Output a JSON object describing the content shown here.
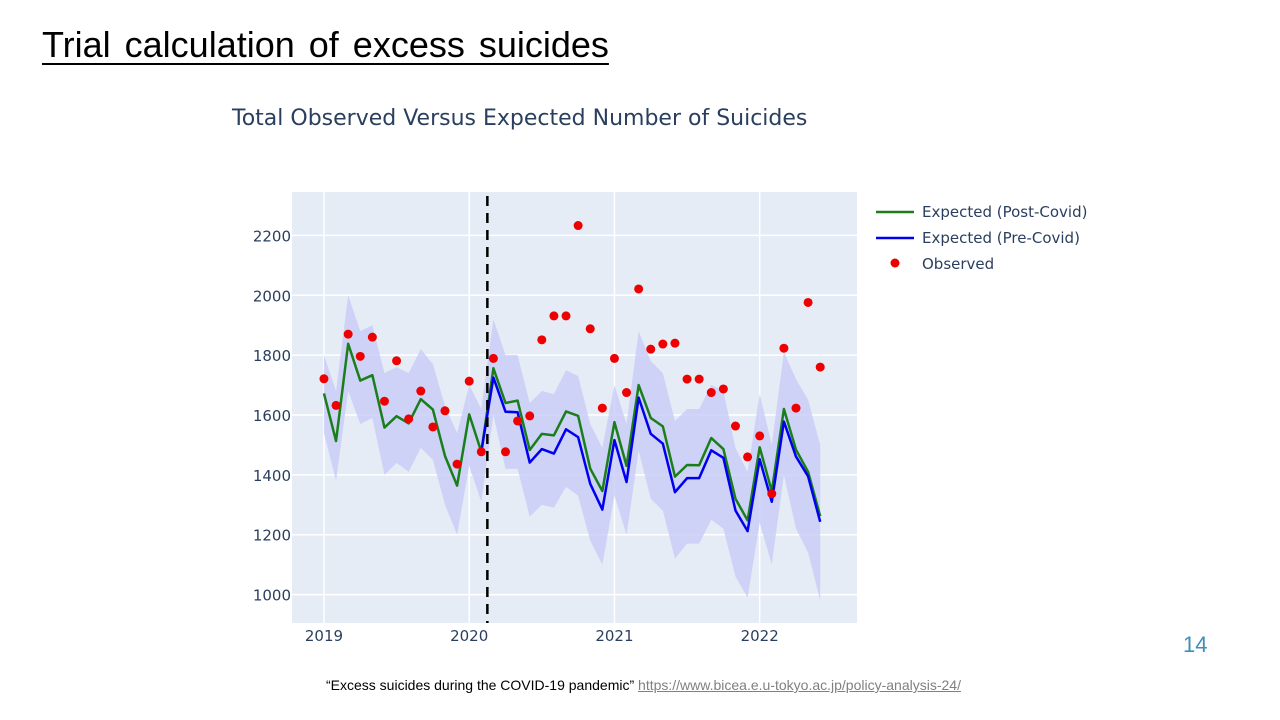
{
  "slide": {
    "title": "Trial calculation of excess suicides",
    "page_number": "14",
    "source_text": "“Excess suicides during the COVID-19 pandemic” ",
    "source_link": "https://www.bicea.e.u-tokyo.ac.jp/policy-analysis-24/"
  },
  "chart_data": {
    "type": "line",
    "title": "Total Observed Versus Expected Number of Suicides",
    "xlabel": "",
    "ylabel": "",
    "xlim": [
      2018.78,
      2022.67
    ],
    "ylim": [
      905,
      2345
    ],
    "x_tick_labels": [
      "2019",
      "2020",
      "2021",
      "2022"
    ],
    "y_tick_labels": [
      "1000",
      "1200",
      "1400",
      "1600",
      "1800",
      "2000",
      "2200"
    ],
    "x_ticks": [
      2019,
      2020,
      2021,
      2022
    ],
    "y_ticks": [
      1000,
      1200,
      1400,
      1600,
      1800,
      2000,
      2200
    ],
    "x": [
      2019.0,
      2019.0833,
      2019.1667,
      2019.25,
      2019.3333,
      2019.4167,
      2019.5,
      2019.5833,
      2019.6667,
      2019.75,
      2019.8333,
      2019.9167,
      2020.0,
      2020.0833,
      2020.1667,
      2020.25,
      2020.3333,
      2020.4167,
      2020.5,
      2020.5833,
      2020.6667,
      2020.75,
      2020.8333,
      2020.9167,
      2021.0,
      2021.0833,
      2021.1667,
      2021.25,
      2021.3333,
      2021.4167,
      2021.5,
      2021.5833,
      2021.6667,
      2021.75,
      2021.8333,
      2021.9167,
      2022.0,
      2022.0833,
      2022.1667,
      2022.25,
      2022.3333,
      2022.4167
    ],
    "covid_start_x": 2020.125,
    "series": [
      {
        "name": "Expected (Post-Covid)",
        "color": "#1a7f1a",
        "values": [
          1672,
          1513,
          1838,
          1715,
          1733,
          1558,
          1596,
          1572,
          1653,
          1618,
          1463,
          1364,
          1602,
          1477,
          1756,
          1640,
          1648,
          1483,
          1537,
          1532,
          1612,
          1597,
          1421,
          1346,
          1576,
          1430,
          1700,
          1590,
          1562,
          1394,
          1433,
          1432,
          1523,
          1486,
          1320,
          1248,
          1492,
          1345,
          1620,
          1484,
          1410,
          1262
        ]
      },
      {
        "name": "Expected (Pre-Covid)",
        "color": "#0000ee",
        "values": [
          null,
          null,
          null,
          null,
          null,
          null,
          null,
          null,
          null,
          null,
          null,
          null,
          null,
          1477,
          1725,
          1611,
          1609,
          1441,
          1486,
          1471,
          1552,
          1526,
          1370,
          1284,
          1516,
          1376,
          1658,
          1537,
          1504,
          1342,
          1389,
          1389,
          1482,
          1457,
          1281,
          1212,
          1452,
          1310,
          1578,
          1461,
          1395,
          1243
        ]
      },
      {
        "name": "Observed",
        "color": "#ee0000",
        "values": [
          1721,
          1632,
          1870,
          1796,
          1860,
          1646,
          1781,
          1587,
          1680,
          1560,
          1614,
          1436,
          1713,
          1477,
          1789,
          1477,
          1580,
          1597,
          1851,
          1931,
          1931,
          2233,
          1888,
          1623,
          1789,
          1675,
          2021,
          1820,
          1837,
          1840,
          1720,
          1720,
          1675,
          1687,
          1563,
          1460,
          1530,
          1337,
          1823,
          1623,
          1976,
          1760
        ]
      }
    ],
    "band": {
      "upper": [
        1800,
        1680,
        2000,
        1880,
        1900,
        1740,
        1760,
        1740,
        1820,
        1770,
        1630,
        1540,
        1700,
        1620,
        1920,
        1800,
        1800,
        1640,
        1680,
        1670,
        1750,
        1730,
        1570,
        1490,
        1700,
        1570,
        1880,
        1780,
        1740,
        1580,
        1620,
        1620,
        1700,
        1680,
        1490,
        1410,
        1670,
        1500,
        1810,
        1720,
        1650,
        1500
      ],
      "lower": [
        1540,
        1380,
        1680,
        1570,
        1590,
        1400,
        1440,
        1410,
        1490,
        1450,
        1300,
        1200,
        1430,
        1310,
        1600,
        1420,
        1420,
        1260,
        1300,
        1290,
        1360,
        1330,
        1180,
        1100,
        1330,
        1200,
        1480,
        1320,
        1280,
        1120,
        1170,
        1170,
        1250,
        1220,
        1060,
        990,
        1240,
        1100,
        1400,
        1220,
        1140,
        980
      ],
      "color": "#c8ccf8"
    },
    "legend_position": "top-right, outside plot",
    "grid": true,
    "plot_background": "#e5ecf6"
  }
}
